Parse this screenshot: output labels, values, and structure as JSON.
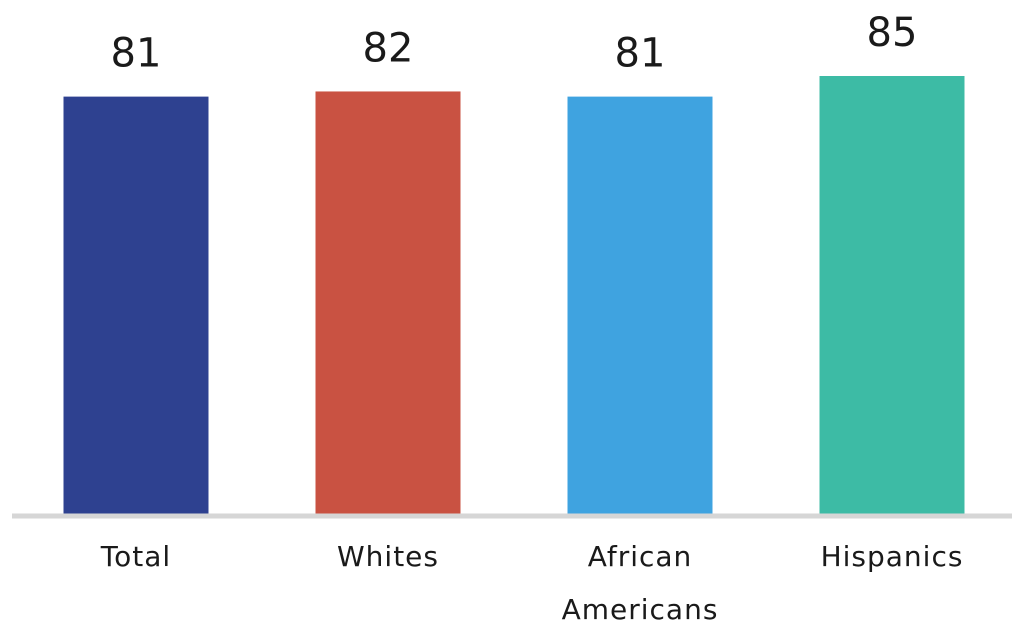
{
  "chart_data": {
    "type": "bar",
    "categories": [
      [
        "Total"
      ],
      [
        "Whites"
      ],
      [
        "African",
        "Americans"
      ],
      [
        "Hispanics"
      ]
    ],
    "values": [
      81,
      82,
      81,
      85
    ],
    "value_labels": [
      "81",
      "82",
      "81",
      "85"
    ],
    "colors": [
      "#2e4190",
      "#c95242",
      "#3fa3e0",
      "#3dbba5"
    ],
    "title": "",
    "xlabel": "",
    "ylabel": "",
    "ylim": [
      0,
      85
    ],
    "grid": false,
    "axis_color": "#d6d6d6"
  }
}
